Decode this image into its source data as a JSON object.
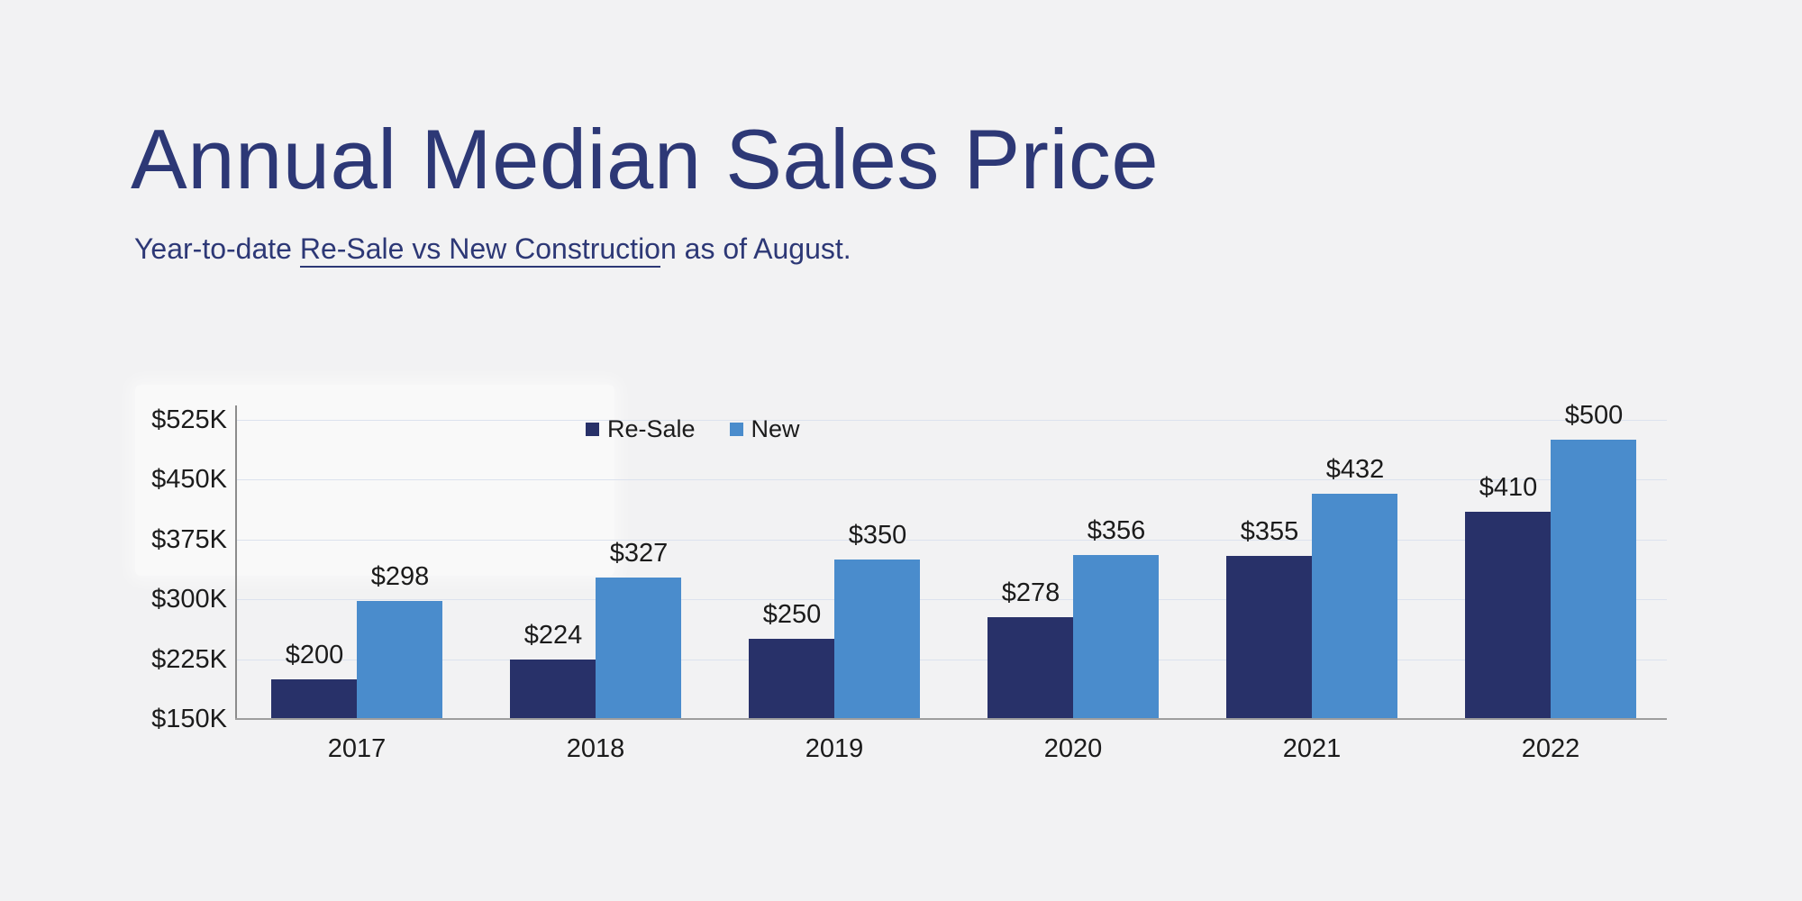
{
  "header": {
    "title": "Annual Median Sales Price",
    "subtitle_prefix": "Year-to-date ",
    "subtitle_underlined": "Re-Sale vs New Constructio",
    "subtitle_suffix": "n as of August."
  },
  "colors": {
    "page_background": "#f2f2f3",
    "heading_text": "#2d3876",
    "label_text": "#1b1b1b",
    "gridline": "#dce2ee",
    "y_axis_line": "#8c8c8c",
    "x_axis_line": "#9e9e9e",
    "resale_bar": "#283169",
    "new_bar": "#4a8ccc"
  },
  "chart_data": {
    "type": "bar",
    "title": "Annual Median Sales Price",
    "subtitle": "Year-to-date Re-Sale vs New Construction as of August.",
    "categories": [
      "2017",
      "2018",
      "2019",
      "2020",
      "2021",
      "2022"
    ],
    "series": [
      {
        "name": "Re-Sale",
        "color": "#283169",
        "values": [
          200,
          224,
          250,
          278,
          355,
          410
        ],
        "labels": [
          "$200",
          "$224",
          "$250",
          "$278",
          "$355",
          "$410"
        ]
      },
      {
        "name": "New",
        "color": "#4a8ccc",
        "values": [
          298,
          327,
          350,
          356,
          432,
          500
        ],
        "labels": [
          "$298",
          "$327",
          "$350",
          "$356",
          "$432",
          "$500"
        ]
      }
    ],
    "units": "thousand USD",
    "y_axis": {
      "min": 150,
      "max": 525,
      "tick_interval": 75,
      "tick_values": [
        150,
        225,
        300,
        375,
        450,
        525
      ],
      "tick_labels": [
        "$150K",
        "$225K",
        "$300K",
        "$375K",
        "$450K",
        "$525K"
      ]
    },
    "legend": {
      "position": "top",
      "items": [
        "Re-Sale",
        "New"
      ]
    },
    "grid": true
  }
}
